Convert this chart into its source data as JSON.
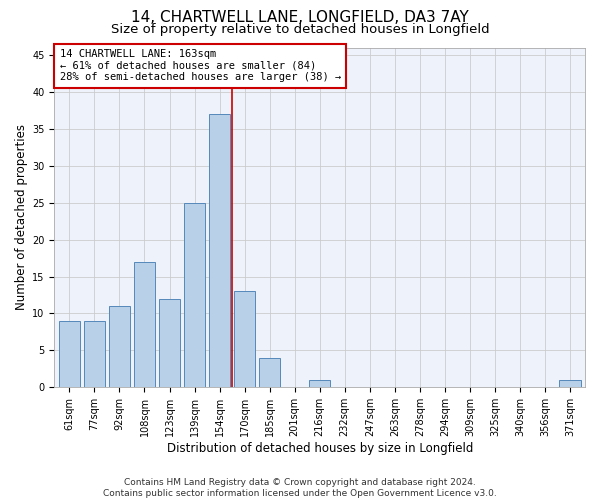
{
  "title_line1": "14, CHARTWELL LANE, LONGFIELD, DA3 7AY",
  "title_line2": "Size of property relative to detached houses in Longfield",
  "xlabel": "Distribution of detached houses by size in Longfield",
  "ylabel": "Number of detached properties",
  "categories": [
    "61sqm",
    "77sqm",
    "92sqm",
    "108sqm",
    "123sqm",
    "139sqm",
    "154sqm",
    "170sqm",
    "185sqm",
    "201sqm",
    "216sqm",
    "232sqm",
    "247sqm",
    "263sqm",
    "278sqm",
    "294sqm",
    "309sqm",
    "325sqm",
    "340sqm",
    "356sqm",
    "371sqm"
  ],
  "values": [
    9,
    9,
    11,
    17,
    12,
    25,
    37,
    13,
    4,
    0,
    1,
    0,
    0,
    0,
    0,
    0,
    0,
    0,
    0,
    0,
    1
  ],
  "bar_color": "#b8d0e8",
  "bar_edge_color": "#5588bb",
  "grid_color": "#cccccc",
  "background_color": "#eef2fa",
  "annotation_text": "14 CHARTWELL LANE: 163sqm\n← 61% of detached houses are smaller (84)\n28% of semi-detached houses are larger (38) →",
  "annotation_box_color": "#ffffff",
  "annotation_box_edge": "#cc0000",
  "vline_x_index": 6.5,
  "vline_color": "#cc0000",
  "ylim": [
    0,
    46
  ],
  "yticks": [
    0,
    5,
    10,
    15,
    20,
    25,
    30,
    35,
    40,
    45
  ],
  "footnote": "Contains HM Land Registry data © Crown copyright and database right 2024.\nContains public sector information licensed under the Open Government Licence v3.0.",
  "title_fontsize": 11,
  "subtitle_fontsize": 9.5,
  "axis_label_fontsize": 8.5,
  "tick_fontsize": 7,
  "annotation_fontsize": 7.5,
  "footnote_fontsize": 6.5
}
